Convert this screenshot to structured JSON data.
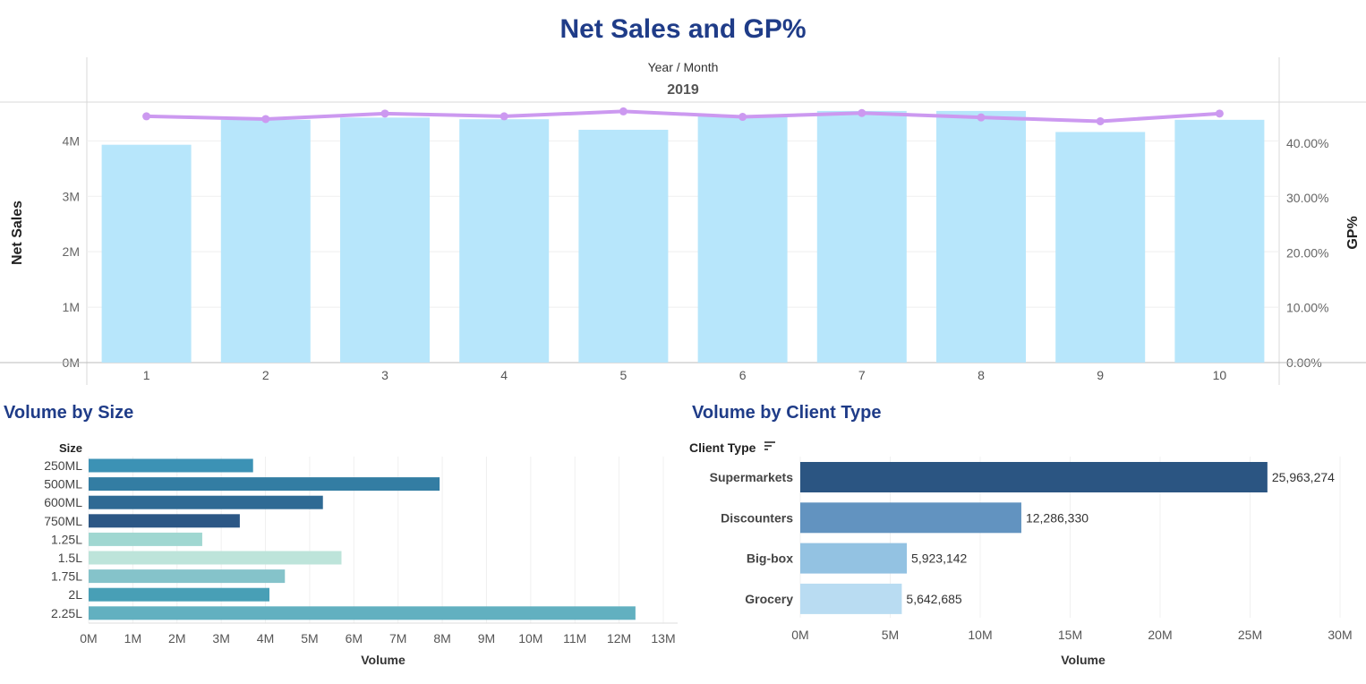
{
  "title": "Net Sales and GP%",
  "colors": {
    "title": "#1f3c88",
    "bar": "#b7e6fb",
    "line": "#cc99f0",
    "size_bars": [
      "#3c92b5",
      "#337da3",
      "#2f6a94",
      "#2c5785",
      "#a0d7d1",
      "#bde4da",
      "#85c3ca",
      "#489fb6",
      "#62b0c0"
    ],
    "client_bars": [
      "#2b5582",
      "#6293c0",
      "#93c2e2",
      "#b9dcf2"
    ]
  },
  "chart_data": [
    {
      "type": "bar",
      "title": "Net Sales and GP%",
      "header": "Year / Month",
      "year": "2019",
      "categories": [
        "1",
        "2",
        "3",
        "4",
        "5",
        "6",
        "7",
        "8",
        "9",
        "10"
      ],
      "series": [
        {
          "name": "Net Sales",
          "axis": "left",
          "type": "bar",
          "values": [
            3930000,
            4380000,
            4420000,
            4390000,
            4200000,
            4460000,
            4540000,
            4540000,
            4160000,
            4380000
          ]
        },
        {
          "name": "GP%",
          "axis": "right",
          "type": "line",
          "values": [
            44.9,
            44.4,
            45.4,
            44.9,
            45.8,
            44.8,
            45.5,
            44.7,
            44.0,
            45.4
          ]
        }
      ],
      "ylabel": "Net Sales",
      "y2label": "GP%",
      "ylim": [
        0,
        4700000
      ],
      "y2lim": [
        0,
        47.5
      ],
      "yticks": [
        "0M",
        "1M",
        "2M",
        "3M",
        "4M"
      ],
      "y2ticks": [
        "0.00%",
        "10.00%",
        "20.00%",
        "30.00%",
        "40.00%"
      ],
      "grid": true
    },
    {
      "type": "bar",
      "orientation": "horizontal",
      "title": "Volume by Size",
      "category_label": "Size",
      "xlabel": "Volume",
      "categories": [
        "250ML",
        "500ML",
        "600ML",
        "750ML",
        "1.25L",
        "1.5L",
        "1.75L",
        "2L",
        "2.25L"
      ],
      "values": [
        3720000,
        7940000,
        5300000,
        3420000,
        2570000,
        5720000,
        4440000,
        4090000,
        12370000
      ],
      "xlim": [
        0,
        13000000
      ],
      "xticks": [
        "0M",
        "1M",
        "2M",
        "3M",
        "4M",
        "5M",
        "6M",
        "7M",
        "8M",
        "9M",
        "10M",
        "11M",
        "12M",
        "13M"
      ],
      "grid": true
    },
    {
      "type": "bar",
      "orientation": "horizontal",
      "title": "Volume by Client Type",
      "category_label": "Client Type",
      "xlabel": "Volume",
      "categories": [
        "Supermarkets",
        "Discounters",
        "Big-box",
        "Grocery"
      ],
      "values": [
        25963274,
        12286330,
        5923142,
        5642685
      ],
      "data_labels": [
        "25,963,274",
        "12,286,330",
        "5,923,142",
        "5,642,685"
      ],
      "xlim": [
        0,
        30000000
      ],
      "xticks": [
        "0M",
        "5M",
        "10M",
        "15M",
        "20M",
        "25M",
        "30M"
      ],
      "grid": true
    }
  ]
}
